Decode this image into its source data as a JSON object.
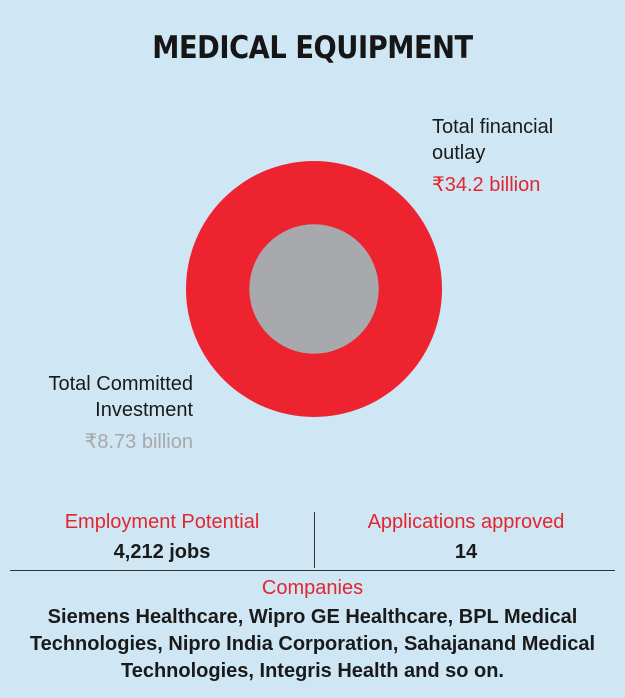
{
  "title": "MEDICAL EQUIPMENT",
  "chart_data": {
    "type": "pie",
    "subtype": "nested-circles",
    "unit": "₹ billion",
    "series": [
      {
        "name": "Total financial outlay",
        "value": 34.2,
        "display": "₹34.2 billion",
        "color": "#ed2330"
      },
      {
        "name": "Total Committed Investment",
        "value": 8.73,
        "display": "₹8.73 billion",
        "color": "#a7a9ac"
      }
    ]
  },
  "labels": {
    "outlay_line1": "Total financial",
    "outlay_line2": "outlay",
    "investment_line1": "Total Committed",
    "investment_line2": "Investment"
  },
  "stats": {
    "employment_label": "Employment Potential",
    "employment_value": "4,212 jobs",
    "applications_label": "Applications approved",
    "applications_value": "14"
  },
  "companies": {
    "label": "Companies",
    "text": "Siemens Healthcare, Wipro GE Healthcare, BPL Medical Technologies, Nipro India Corporation, Sahajanand Medical Technologies, Integris Health and so on."
  }
}
